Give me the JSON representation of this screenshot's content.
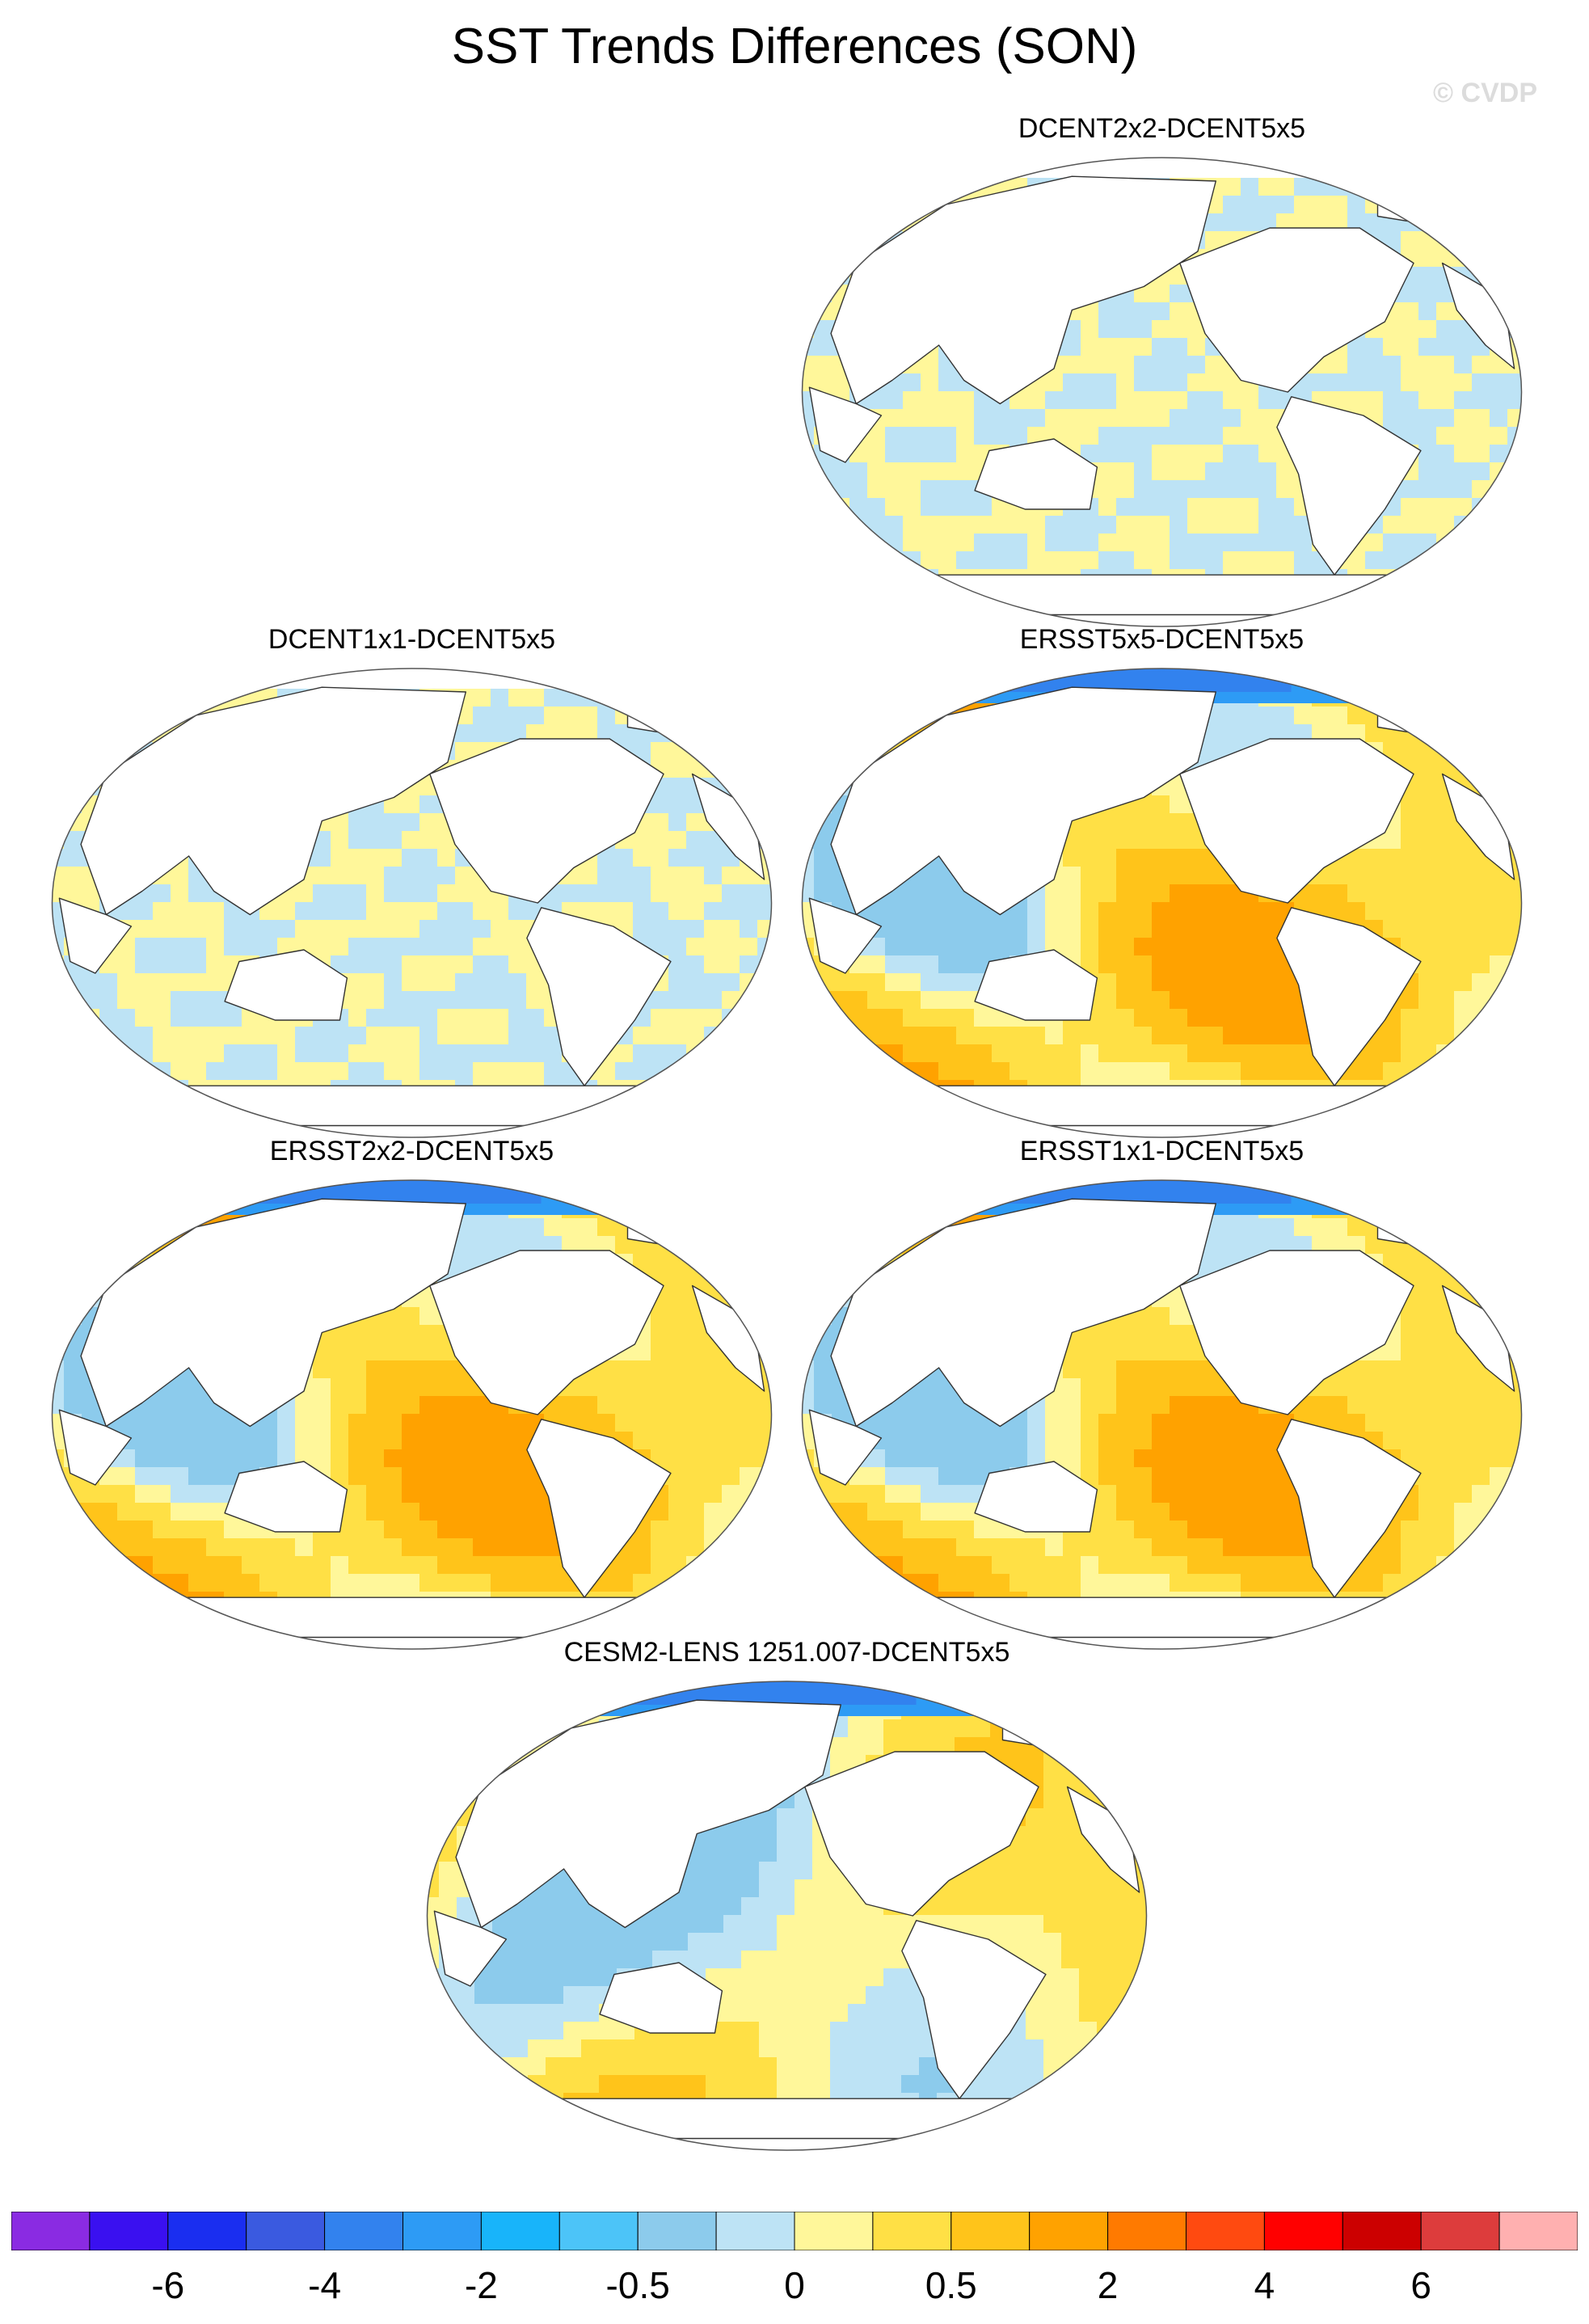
{
  "title": "SST Trends Differences (SON)",
  "watermark": "© CVDP",
  "panels": [
    {
      "label": "DCENT2x2-DCENT5x5",
      "pattern": "stripe"
    },
    {
      "label": "DCENT1x1-DCENT5x5",
      "pattern": "stripe"
    },
    {
      "label": "ERSST5x5-DCENT5x5",
      "pattern": "ersst"
    },
    {
      "label": "ERSST2x2-DCENT5x5",
      "pattern": "ersst"
    },
    {
      "label": "ERSST1x1-DCENT5x5",
      "pattern": "ersst"
    },
    {
      "label": "CESM2-LENS 1251.007-DCENT5x5",
      "pattern": "cesm"
    }
  ],
  "colorbar": {
    "colors": [
      "#8a2be2",
      "#3a10f0",
      "#1a2ef0",
      "#3a5ae0",
      "#3282ee",
      "#2d9bf5",
      "#18b4fa",
      "#4cc4f8",
      "#8ccbec",
      "#bde3f5",
      "#fff79a",
      "#ffe045",
      "#ffc41a",
      "#ffa200",
      "#ff7a00",
      "#ff4a10",
      "#ff0000",
      "#cc0000",
      "#dd3c3c",
      "#ffb0b0"
    ],
    "labels": [
      "-6",
      "-4",
      "-2",
      "-0.5",
      "0",
      "0.5",
      "2",
      "4",
      "6"
    ]
  }
}
